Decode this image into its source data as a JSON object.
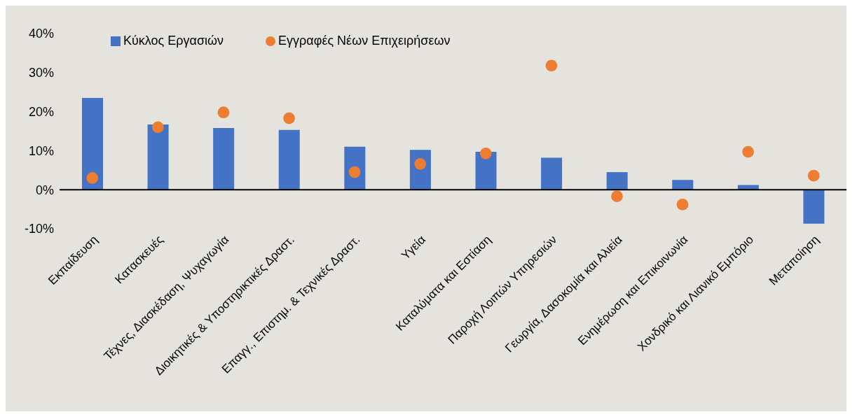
{
  "chart_data": {
    "type": "bar",
    "categories": [
      "Εκπαίδευση",
      "Κατασκευές",
      "Τέχνες, Διασκέδαση, Ψυχαγωγία",
      "Διοικητικές & Υποστηρικτικές Δραστ.",
      "Επαγγ., Επιστημ. & Τεχνικές Δραστ.",
      "Υγεία",
      "Καταλύματα και Εστίαση",
      "Παροχή Λοιπών Υπηρεσιών",
      "Γεωργία, Δασοκομία και Αλιεία",
      "Ενημέρωση και Επικοινωνία",
      "Χονδρικό και Λιανικό Εμπόριο",
      "Μεταποίηση"
    ],
    "series": [
      {
        "name": "Κύκλος Εργασιών",
        "color": "#4472c4",
        "values": [
          23.5,
          16.7,
          15.8,
          15.3,
          11.0,
          10.2,
          9.7,
          8.2,
          4.5,
          2.5,
          1.2,
          -8.7
        ]
      },
      {
        "name": "Εγγραφές Νέων Επιχειρήσεων",
        "type": "scatter",
        "color": "#ed7d31",
        "values": [
          3.0,
          16.0,
          19.8,
          18.3,
          4.5,
          6.6,
          9.3,
          31.8,
          -1.7,
          -3.8,
          9.7,
          3.6
        ]
      }
    ],
    "ylim": [
      -10,
      40
    ],
    "yticks": [
      {
        "value": -10,
        "label": "-10%"
      },
      {
        "value": 0,
        "label": "0%"
      },
      {
        "value": 10,
        "label": "10%"
      },
      {
        "value": 20,
        "label": "20%"
      },
      {
        "value": 30,
        "label": "30%"
      },
      {
        "value": 40,
        "label": "40%"
      }
    ],
    "legend": "top",
    "marker": "circle"
  }
}
